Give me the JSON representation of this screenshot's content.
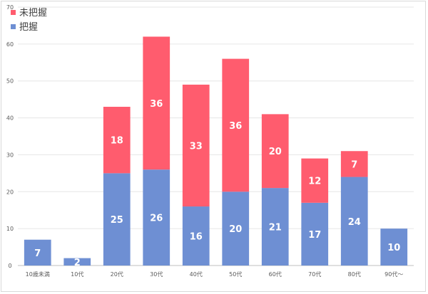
{
  "chart_data": {
    "type": "bar",
    "stacked": true,
    "categories": [
      "10歳未満",
      "10代",
      "20代",
      "30代",
      "40代",
      "50代",
      "60代",
      "70代",
      "80代",
      "90代～"
    ],
    "series": [
      {
        "name": "把握",
        "color": "#6e8fd3",
        "values": [
          7,
          2,
          25,
          26,
          16,
          20,
          21,
          17,
          24,
          10
        ]
      },
      {
        "name": "未把握",
        "color": "#ff5c6e",
        "values": [
          0,
          0,
          18,
          36,
          33,
          36,
          20,
          12,
          7,
          0
        ]
      }
    ],
    "title": "",
    "xlabel": "",
    "ylabel": "",
    "ylim": [
      0,
      70
    ],
    "yticks": [
      0,
      10,
      20,
      30,
      40,
      50,
      60,
      70
    ],
    "grid": true,
    "legend": "top-left"
  }
}
